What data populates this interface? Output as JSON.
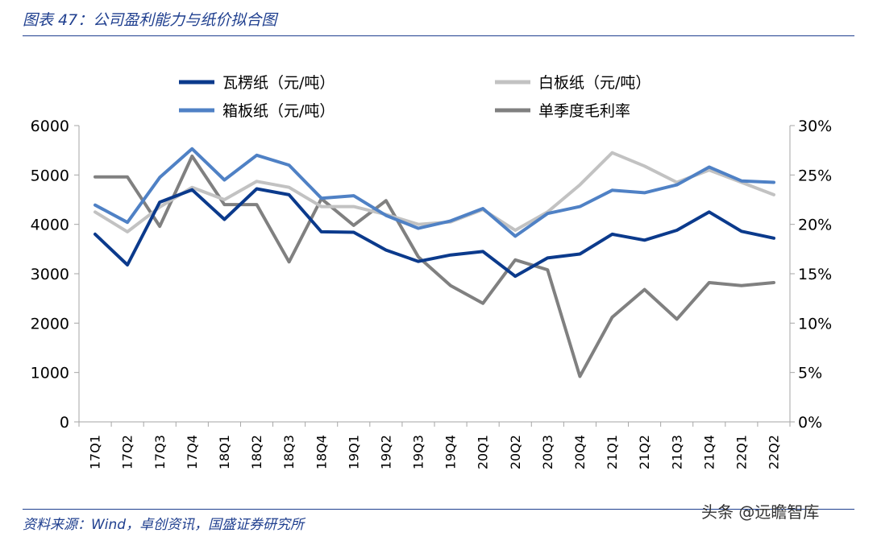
{
  "title": "图表 47：公司盈利能力与纸价拟合图",
  "source": "资料来源：Wind，卓创资讯，国盛证券研究所",
  "watermark": "头条 @远瞻智库",
  "chart_data": {
    "type": "line",
    "categories": [
      "17Q1",
      "17Q2",
      "17Q3",
      "17Q4",
      "18Q1",
      "18Q2",
      "18Q3",
      "18Q4",
      "19Q1",
      "19Q2",
      "19Q3",
      "19Q4",
      "20Q1",
      "20Q2",
      "20Q3",
      "20Q4",
      "21Q1",
      "21Q2",
      "21Q3",
      "21Q4",
      "22Q1",
      "22Q2"
    ],
    "y_left": {
      "ylim": [
        0,
        6000
      ],
      "ticks": [
        0,
        1000,
        2000,
        3000,
        4000,
        5000,
        6000
      ]
    },
    "y_right": {
      "ylim": [
        0,
        30
      ],
      "ticks": [
        "0%",
        "5%",
        "10%",
        "15%",
        "20%",
        "25%",
        "30%"
      ]
    },
    "legend_placement": "top",
    "grid": false,
    "series": [
      {
        "name": "瓦楞纸（元/吨）",
        "axis": "left",
        "color": "#0b3a8c",
        "values": [
          3800,
          3180,
          4450,
          4700,
          4100,
          4720,
          4600,
          3850,
          3840,
          3480,
          3250,
          3380,
          3450,
          2950,
          3320,
          3400,
          3800,
          3680,
          3880,
          4250,
          3860,
          3720
        ]
      },
      {
        "name": "白板纸（元/吨）",
        "axis": "left",
        "color": "#c2c2c2",
        "values": [
          4250,
          3850,
          4350,
          4750,
          4500,
          4870,
          4750,
          4360,
          4360,
          4200,
          4000,
          4050,
          4300,
          3880,
          4250,
          4800,
          5450,
          5180,
          4850,
          5100,
          4850,
          4600
        ]
      },
      {
        "name": "箱板纸（元/吨）",
        "axis": "left",
        "color": "#4f81c5",
        "values": [
          4390,
          4040,
          4950,
          5530,
          4900,
          5400,
          5200,
          4530,
          4580,
          4180,
          3920,
          4070,
          4320,
          3760,
          4220,
          4360,
          4690,
          4640,
          4800,
          5160,
          4880,
          4850
        ]
      },
      {
        "name": "单季度毛利率",
        "axis": "right",
        "color": "#808080",
        "values": [
          24.8,
          24.8,
          19.8,
          26.9,
          22.0,
          22.0,
          16.2,
          22.6,
          19.9,
          22.4,
          16.7,
          13.8,
          12.0,
          16.4,
          15.4,
          4.6,
          10.6,
          13.4,
          10.4,
          14.1,
          13.8,
          14.1
        ]
      }
    ]
  }
}
